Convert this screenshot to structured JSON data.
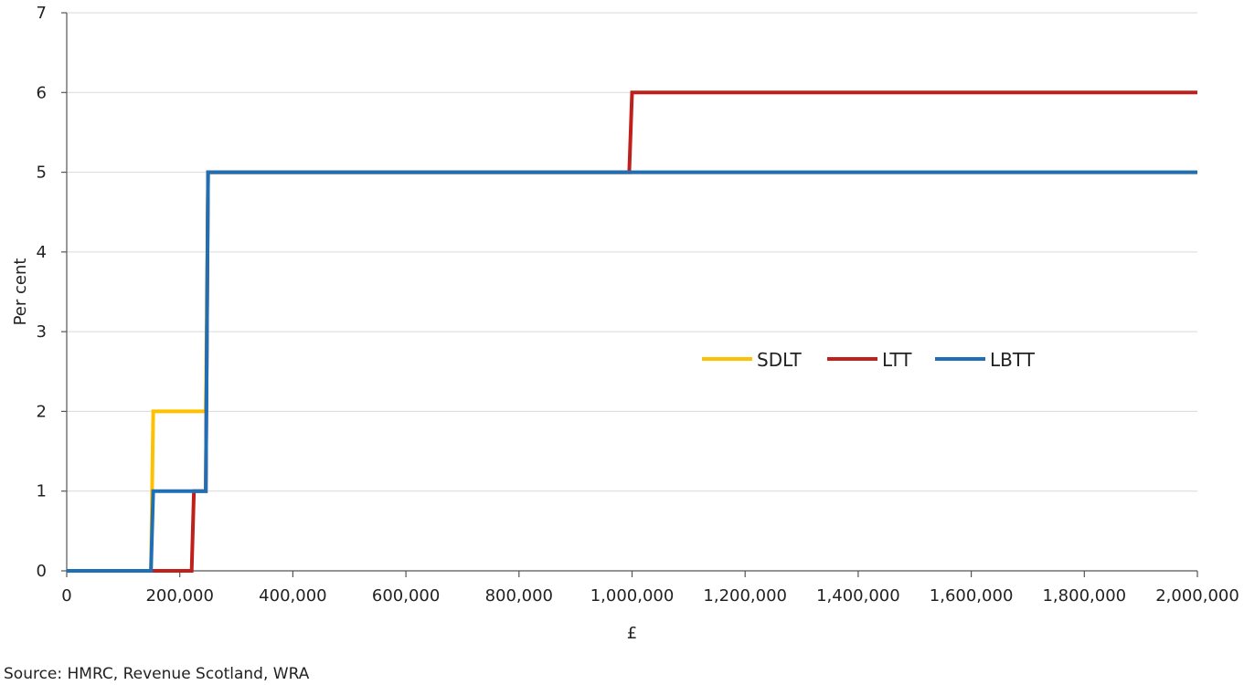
{
  "chart_data": {
    "type": "line",
    "title": "",
    "xlabel": "£",
    "ylabel": "Per cent",
    "xlim": [
      0,
      2000000
    ],
    "ylim": [
      0,
      7
    ],
    "x_ticks": [
      0,
      200000,
      400000,
      600000,
      800000,
      1000000,
      1200000,
      1400000,
      1600000,
      1800000,
      2000000
    ],
    "x_tick_labels": [
      "0",
      "200,000",
      "400,000",
      "600,000",
      "800,000",
      "1,000,000",
      "1,200,000",
      "1,400,000",
      "1,600,000",
      "1,800,000",
      "2,000,000"
    ],
    "y_ticks": [
      0,
      1,
      2,
      3,
      4,
      5,
      6,
      7
    ],
    "y_tick_labels": [
      "0",
      "1",
      "2",
      "3",
      "4",
      "5",
      "6",
      "7"
    ],
    "grid": "horizontal",
    "legend_position": "center-right",
    "series": [
      {
        "name": "SDLT",
        "color": "#FFC000",
        "points": [
          [
            0,
            0
          ],
          [
            149000,
            0
          ],
          [
            153000,
            2
          ],
          [
            246000,
            2
          ],
          [
            250000,
            5
          ],
          [
            2000000,
            5
          ]
        ]
      },
      {
        "name": "LTT",
        "color": "#C0201C",
        "points": [
          [
            0,
            0
          ],
          [
            221000,
            0
          ],
          [
            225000,
            1
          ],
          [
            246000,
            1
          ],
          [
            250000,
            5
          ],
          [
            995000,
            5
          ],
          [
            1000000,
            6
          ],
          [
            2000000,
            6
          ]
        ]
      },
      {
        "name": "LBTT",
        "color": "#1F6FB7",
        "points": [
          [
            0,
            0
          ],
          [
            149000,
            0
          ],
          [
            153000,
            1
          ],
          [
            246000,
            1
          ],
          [
            250000,
            5
          ],
          [
            2000000,
            5
          ]
        ]
      }
    ]
  },
  "source_note": "Source: HMRC, Revenue Scotland, WRA"
}
